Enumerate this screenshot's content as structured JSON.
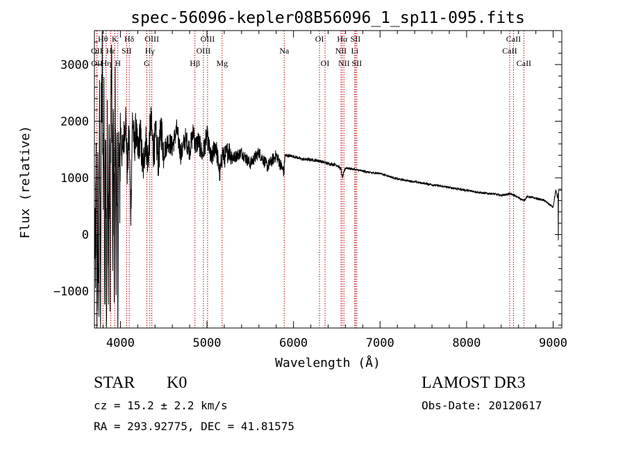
{
  "chart_data": {
    "type": "line",
    "title": "spec-56096-kepler08B56096_1_sp11-095.fits",
    "xlabel": "Wavelength (Å)",
    "ylabel": "Flux (relative)",
    "xlim": [
      3700,
      9100
    ],
    "ylim": [
      -1650,
      3600
    ],
    "x_ticks": [
      4000,
      5000,
      6000,
      7000,
      8000,
      9000
    ],
    "y_ticks": [
      -1000,
      0,
      1000,
      2000,
      3000
    ],
    "x_tick_labels": [
      "4000",
      "5000",
      "6000",
      "7000",
      "8000",
      "9000"
    ],
    "y_tick_labels": [
      "−1000",
      "0",
      "1000",
      "2000",
      "3000"
    ],
    "series": [
      {
        "name": "spectrum",
        "x": [
          3700,
          3710,
          3720,
          3730,
          3740,
          3750,
          3760,
          3770,
          3780,
          3790,
          3800,
          3810,
          3820,
          3830,
          3840,
          3850,
          3860,
          3870,
          3880,
          3890,
          3900,
          3910,
          3920,
          3930,
          3940,
          3950,
          3960,
          3970,
          3980,
          3990,
          4000,
          4020,
          4040,
          4060,
          4080,
          4100,
          4120,
          4140,
          4160,
          4180,
          4200,
          4230,
          4260,
          4290,
          4320,
          4350,
          4380,
          4410,
          4440,
          4470,
          4500,
          4550,
          4600,
          4650,
          4700,
          4750,
          4800,
          4850,
          4860,
          4900,
          4950,
          5000,
          5050,
          5100,
          5150,
          5180,
          5200,
          5250,
          5300,
          5400,
          5500,
          5600,
          5700,
          5800,
          5890,
          5900,
          6000,
          6100,
          6200,
          6300,
          6400,
          6500,
          6550,
          6563,
          6600,
          6700,
          6800,
          6900,
          7000,
          7100,
          7200,
          7400,
          7600,
          7800,
          8000,
          8200,
          8300,
          8400,
          8498,
          8542,
          8600,
          8662,
          8700,
          8800,
          8900,
          9000,
          9030,
          9050,
          9060,
          9100
        ],
        "y": [
          200,
          -900,
          1000,
          -1500,
          800,
          -1400,
          2200,
          -1300,
          2000,
          2900,
          600,
          2400,
          -1450,
          2700,
          -1300,
          1900,
          -1200,
          2100,
          -900,
          2500,
          2800,
          -300,
          2000,
          -700,
          2300,
          -200,
          1200,
          -1000,
          1600,
          600,
          1900,
          1400,
          1700,
          2100,
          1100,
          1800,
          400,
          2100,
          1500,
          1900,
          1400,
          1800,
          1100,
          1700,
          1300,
          2000,
          1500,
          1700,
          1300,
          1900,
          1450,
          1650,
          1550,
          1850,
          1400,
          1700,
          1500,
          1850,
          1550,
          1650,
          1400,
          1750,
          1300,
          1600,
          1050,
          1450,
          1350,
          1500,
          1350,
          1450,
          1250,
          1450,
          1200,
          1400,
          1100,
          1400,
          1380,
          1330,
          1320,
          1300,
          1250,
          1230,
          1150,
          1000,
          1180,
          1150,
          1120,
          1090,
          1080,
          1030,
          980,
          930,
          880,
          830,
          780,
          730,
          720,
          690,
          720,
          700,
          650,
          600,
          670,
          640,
          600,
          480,
          780,
          650,
          780,
          780
        ],
        "noise_amplitude_by_region": [
          {
            "from": 3700,
            "to": 4000,
            "amplitude": 1000
          },
          {
            "from": 4000,
            "to": 4500,
            "amplitude": 360
          },
          {
            "from": 4500,
            "to": 5300,
            "amplitude": 200
          },
          {
            "from": 5300,
            "to": 5900,
            "amplitude": 110
          },
          {
            "from": 5900,
            "to": 6600,
            "amplitude": 28
          },
          {
            "from": 6600,
            "to": 9100,
            "amplitude": 18
          }
        ]
      }
    ],
    "line_markers": [
      {
        "label": "Hθ",
        "wavelength": 3798,
        "row": 0
      },
      {
        "label": "OII",
        "wavelength": 3727,
        "row": 1
      },
      {
        "label": "OII",
        "wavelength": 3729,
        "row": 2
      },
      {
        "label": "Hη",
        "wavelength": 3835,
        "row": 2
      },
      {
        "label": "K",
        "wavelength": 3934,
        "row": 0
      },
      {
        "label": "Hε",
        "wavelength": 3889,
        "row": 1
      },
      {
        "label": "H",
        "wavelength": 3970,
        "row": 2
      },
      {
        "label": "Hδ",
        "wavelength": 4102,
        "row": 0
      },
      {
        "label": "SII",
        "wavelength": 4072,
        "row": 1
      },
      {
        "label": "OIII",
        "wavelength": 4363,
        "row": 0
      },
      {
        "label": "Hγ",
        "wavelength": 4340,
        "row": 1
      },
      {
        "label": "G",
        "wavelength": 4305,
        "row": 2
      },
      {
        "label": "Hβ",
        "wavelength": 4861,
        "row": 2
      },
      {
        "label": "OIII",
        "wavelength": 5007,
        "row": 0
      },
      {
        "label": "OIII",
        "wavelength": 4959,
        "row": 1
      },
      {
        "label": "Mg",
        "wavelength": 5175,
        "row": 2
      },
      {
        "label": "Na",
        "wavelength": 5893,
        "row": 1
      },
      {
        "label": "OI",
        "wavelength": 6300,
        "row": 0
      },
      {
        "label": "OI",
        "wavelength": 6364,
        "row": 2
      },
      {
        "label": "Hα",
        "wavelength": 6563,
        "row": 0
      },
      {
        "label": "NII",
        "wavelength": 6548,
        "row": 1
      },
      {
        "label": "NII",
        "wavelength": 6583,
        "row": 2
      },
      {
        "label": "SII",
        "wavelength": 6716,
        "row": 0
      },
      {
        "label": "Li",
        "wavelength": 6708,
        "row": 1
      },
      {
        "label": "SII",
        "wavelength": 6731,
        "row": 2
      },
      {
        "label": "CaII",
        "wavelength": 8542,
        "row": 0
      },
      {
        "label": "CaII",
        "wavelength": 8498,
        "row": 1
      },
      {
        "label": "CaII",
        "wavelength": 8662,
        "row": 2
      }
    ],
    "marker_color": "#c00000",
    "line_color": "#000000"
  },
  "info": {
    "object_type": "STAR",
    "subclass": "K0",
    "survey": "LAMOST DR3",
    "redshift": "cz = 15.2 ± 2.2 km/s",
    "obs_date": "Obs-Date: 20120617",
    "coordinates": "RA = 293.92775, DEC =  41.81575"
  }
}
